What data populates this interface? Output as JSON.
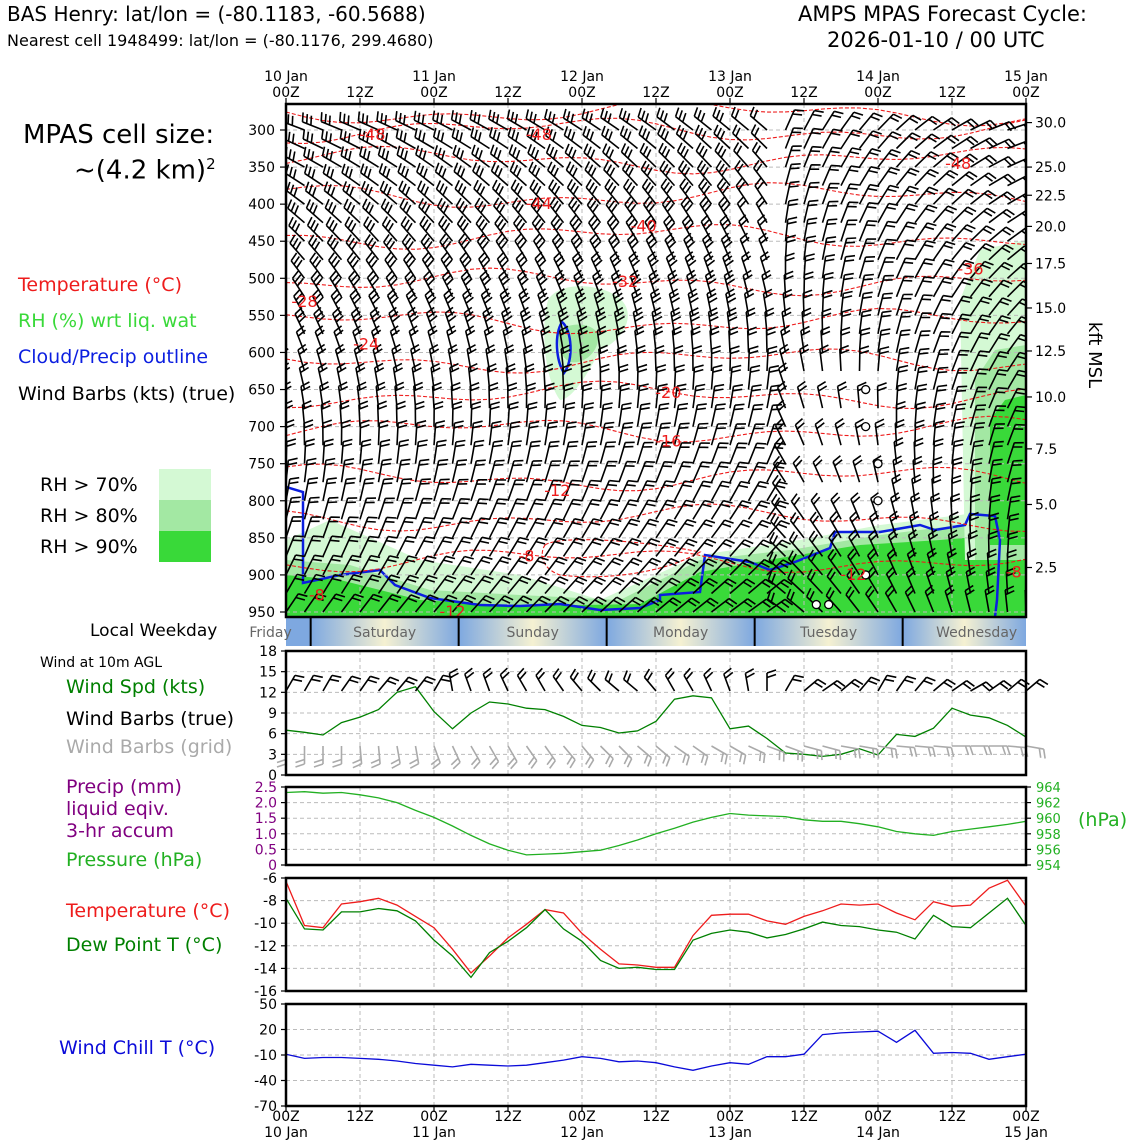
{
  "header": {
    "station_line": "BAS Henry: lat/lon = (-80.1183, -60.5688)",
    "cell_line": "Nearest cell 1948499: lat/lon = (-80.1176, 299.4680)",
    "title_line1": "AMPS MPAS Forecast Cycle:",
    "title_line2": "2026-01-10 / 00 UTC"
  },
  "left_legend": {
    "cell_size_title": "MPAS cell size:",
    "cell_size_value": "~(4.2 km)",
    "cell_size_exp": "2",
    "temperature": "Temperature (°C)",
    "rh": "RH (%) wrt liq. wat",
    "cloud": "Cloud/Precip outline",
    "wind": "Wind Barbs (kts) (true)",
    "rh70": "RH > 70%",
    "rh80": "RH > 80%",
    "rh90": "RH > 90%"
  },
  "colors": {
    "temp": "#ee1c1c",
    "rh70": "#d4f9d4",
    "rh80": "#a3e8a3",
    "rh90": "#39d939",
    "cloud": "#0b1ee0",
    "pressure": "#22b022",
    "precip": "#800080",
    "dew": "#008000",
    "chill": "#0b0bd9",
    "gridbarb": "#aaaaaa"
  },
  "time_axis": {
    "top_labels": [
      {
        "day": "10 Jan",
        "hour": "00Z"
      },
      {
        "day": "",
        "hour": "12Z"
      },
      {
        "day": "11 Jan",
        "hour": "00Z"
      },
      {
        "day": "",
        "hour": "12Z"
      },
      {
        "day": "12 Jan",
        "hour": "00Z"
      },
      {
        "day": "",
        "hour": "12Z"
      },
      {
        "day": "13 Jan",
        "hour": "00Z"
      },
      {
        "day": "",
        "hour": "12Z"
      },
      {
        "day": "14 Jan",
        "hour": "00Z"
      },
      {
        "day": "",
        "hour": "12Z"
      },
      {
        "day": "15 Jan",
        "hour": "00Z"
      }
    ],
    "bottom_labels": [
      {
        "hour": "00Z",
        "day": "10 Jan"
      },
      {
        "hour": "12Z",
        "day": ""
      },
      {
        "hour": "00Z",
        "day": "11 Jan"
      },
      {
        "hour": "12Z",
        "day": ""
      },
      {
        "hour": "00Z",
        "day": "12 Jan"
      },
      {
        "hour": "12Z",
        "day": ""
      },
      {
        "hour": "00Z",
        "day": "13 Jan"
      },
      {
        "hour": "12Z",
        "day": ""
      },
      {
        "hour": "00Z",
        "day": "14 Jan"
      },
      {
        "hour": "12Z",
        "day": ""
      },
      {
        "hour": "00Z",
        "day": "15 Jan"
      }
    ]
  },
  "weekday": {
    "label": "Local Weekday",
    "days": [
      "Friday",
      "Saturday",
      "Sunday",
      "Monday",
      "Tuesday",
      "Wednesday"
    ]
  },
  "surface_legend": {
    "wind_title": "Wind at 10m AGL",
    "wind_spd": "Wind Spd (kts)",
    "barbs_true": "Wind Barbs (true)",
    "barbs_grid": "Wind Barbs (grid)",
    "precip1": "Precip (mm)",
    "precip2": "liquid eqiv.",
    "precip3": "3-hr accum",
    "pressure": "Pressure (hPa)",
    "pressure_unit": "(hPa)",
    "temperature": "Temperature (°C)",
    "dewpoint": "Dew Point T (°C)",
    "windchill": "Wind Chill T (°C)"
  },
  "chart_data": [
    {
      "type": "contour",
      "name": "cross-section",
      "yaxis_label": "hPa",
      "yticks": [
        "300",
        "350",
        "400",
        "450",
        "500",
        "550",
        "600",
        "650",
        "700",
        "750",
        "800",
        "850",
        "900",
        "950"
      ],
      "ylim": [
        300,
        950
      ],
      "right_label": "kft MSL",
      "right_ticks": [
        "30.0",
        "25.0",
        "22.5",
        "20.0",
        "17.5",
        "15.0",
        "12.5",
        "10.0",
        "7.5",
        "5.0",
        "2.5"
      ],
      "right_tick_hpa": [
        290,
        350,
        388,
        430,
        480,
        540,
        598,
        660,
        730,
        805,
        890
      ],
      "xlim_hours": [
        0,
        120
      ],
      "temp_contour_labels": [
        {
          "text": "-48",
          "t": 14,
          "p": 307
        },
        {
          "text": "-48",
          "t": 41,
          "p": 307
        },
        {
          "text": "-48",
          "t": 109,
          "p": 346
        },
        {
          "text": "-44",
          "t": 41,
          "p": 400
        },
        {
          "text": "-40",
          "t": 58,
          "p": 430
        },
        {
          "text": "-36",
          "t": 111,
          "p": 488
        },
        {
          "text": "-32",
          "t": 55,
          "p": 505
        },
        {
          "text": "-28",
          "t": 3,
          "p": 532
        },
        {
          "text": "-24",
          "t": 13,
          "p": 589
        },
        {
          "text": "-20",
          "t": 62,
          "p": 655
        },
        {
          "text": "-16",
          "t": 62,
          "p": 720
        },
        {
          "text": "-12",
          "t": 44,
          "p": 787
        },
        {
          "text": "-8",
          "t": 39,
          "p": 875
        },
        {
          "text": "-12",
          "t": 92,
          "p": 900
        },
        {
          "text": "-8",
          "t": 5,
          "p": 928
        },
        {
          "text": "-12",
          "t": 27,
          "p": 950
        },
        {
          "text": "-8",
          "t": 118,
          "p": 897
        }
      ]
    },
    {
      "type": "line",
      "name": "wind-speed",
      "ylim": [
        0,
        18
      ],
      "yticks": [
        "0",
        "3",
        "6",
        "9",
        "12",
        "15",
        "18"
      ],
      "x_hours": [
        0,
        3,
        6,
        9,
        12,
        15,
        18,
        21,
        24,
        27,
        30,
        33,
        36,
        39,
        42,
        45,
        48,
        51,
        54,
        57,
        60,
        63,
        66,
        69,
        72,
        75,
        78,
        81,
        84,
        87,
        90,
        93,
        96,
        99,
        102,
        105,
        108,
        111,
        114,
        117,
        120
      ],
      "values": [
        6.5,
        6.2,
        5.8,
        7.6,
        8.4,
        9.5,
        12.0,
        12.8,
        9.2,
        6.7,
        9.0,
        10.6,
        10.3,
        9.7,
        9.5,
        8.5,
        7.2,
        6.9,
        6.1,
        6.4,
        7.8,
        11.0,
        11.5,
        11.2,
        6.7,
        7.1,
        5.3,
        3.2,
        3.0,
        2.7,
        3.0,
        3.8,
        2.9,
        5.9,
        5.6,
        6.8,
        9.7,
        8.7,
        8.3,
        7.2,
        5.5
      ],
      "barb_angles_true": [
        120,
        120,
        120,
        115,
        115,
        110,
        110,
        112,
        120,
        160,
        170,
        170,
        175,
        180,
        180,
        185,
        190,
        195,
        200,
        200,
        190,
        180,
        180,
        175,
        170,
        160,
        150,
        120,
        100,
        95,
        100,
        110,
        120,
        115,
        110,
        100,
        95,
        90,
        95,
        100,
        100
      ],
      "barb_angles_grid": [
        200,
        200,
        200,
        200,
        195,
        195,
        190,
        190,
        180,
        175,
        170,
        170,
        170,
        165,
        165,
        160,
        160,
        155,
        155,
        150,
        150,
        145,
        145,
        140,
        140,
        135,
        130,
        130,
        125,
        125,
        120,
        120,
        120,
        115,
        115,
        115,
        110,
        110,
        110,
        115,
        120
      ]
    },
    {
      "type": "line",
      "name": "precip-pressure",
      "precip_ylim": [
        0,
        2.5
      ],
      "precip_yticks": [
        "0",
        "0.5",
        "1.0",
        "1.5",
        "2.0",
        "2.5"
      ],
      "pressure_ylim": [
        954,
        964
      ],
      "pressure_yticks": [
        "954",
        "956",
        "958",
        "960",
        "962",
        "964"
      ],
      "x_hours": [
        0,
        3,
        6,
        9,
        12,
        15,
        18,
        21,
        24,
        27,
        30,
        33,
        36,
        39,
        42,
        45,
        48,
        51,
        54,
        57,
        60,
        63,
        66,
        69,
        72,
        75,
        78,
        81,
        84,
        87,
        90,
        93,
        96,
        99,
        102,
        105,
        108,
        111,
        114,
        117,
        120
      ],
      "pressure": [
        963.3,
        963.4,
        963.2,
        963.3,
        963.0,
        962.6,
        962.0,
        961.0,
        960.1,
        959.0,
        957.8,
        956.7,
        955.9,
        955.3,
        955.4,
        955.5,
        955.7,
        955.9,
        956.5,
        957.2,
        958.0,
        958.7,
        959.5,
        960.1,
        960.6,
        960.4,
        960.3,
        960.2,
        959.8,
        959.6,
        959.6,
        959.3,
        958.9,
        958.3,
        958.0,
        957.8,
        958.3,
        958.6,
        958.9,
        959.2,
        959.6
      ]
    },
    {
      "type": "line",
      "name": "temperature-dewpoint",
      "ylim": [
        -16,
        -6
      ],
      "yticks": [
        "-16",
        "-14",
        "-12",
        "-10",
        "-8",
        "-6"
      ],
      "x_hours": [
        0,
        3,
        6,
        9,
        12,
        15,
        18,
        21,
        24,
        27,
        30,
        33,
        36,
        39,
        42,
        45,
        48,
        51,
        54,
        57,
        60,
        63,
        66,
        69,
        72,
        75,
        78,
        81,
        84,
        87,
        90,
        93,
        96,
        99,
        102,
        105,
        108,
        111,
        114,
        117,
        120
      ],
      "temperature": [
        -6.3,
        -10.2,
        -10.4,
        -8.3,
        -8.1,
        -7.8,
        -8.4,
        -9.4,
        -10.4,
        -12.3,
        -14.4,
        -12.9,
        -11.3,
        -10.1,
        -8.8,
        -9.1,
        -10.9,
        -12.3,
        -13.6,
        -13.7,
        -13.9,
        -13.9,
        -11.1,
        -9.3,
        -9.2,
        -9.2,
        -9.8,
        -10.1,
        -9.4,
        -8.9,
        -8.3,
        -8.4,
        -8.3,
        -9.1,
        -9.7,
        -8.1,
        -8.5,
        -8.4,
        -6.9,
        -6.2,
        -8.5
      ],
      "dewpoint": [
        -7.8,
        -10.5,
        -10.6,
        -9.0,
        -9.0,
        -8.7,
        -8.9,
        -9.8,
        -11.5,
        -12.9,
        -14.8,
        -12.6,
        -11.6,
        -10.4,
        -8.8,
        -10.5,
        -11.6,
        -13.3,
        -14.0,
        -13.9,
        -14.1,
        -14.1,
        -11.5,
        -10.9,
        -10.6,
        -10.8,
        -11.3,
        -11.0,
        -10.5,
        -9.9,
        -10.2,
        -10.3,
        -10.6,
        -10.8,
        -11.4,
        -9.3,
        -10.3,
        -10.4,
        -9.1,
        -7.8,
        -10.2
      ]
    },
    {
      "type": "line",
      "name": "wind-chill",
      "ylim": [
        -70,
        50
      ],
      "yticks": [
        "-70",
        "-40",
        "-10",
        "20",
        "50"
      ],
      "x_hours": [
        0,
        3,
        6,
        9,
        12,
        15,
        18,
        21,
        24,
        27,
        30,
        33,
        36,
        39,
        42,
        45,
        48,
        51,
        54,
        57,
        60,
        63,
        66,
        69,
        72,
        75,
        78,
        81,
        84,
        87,
        90,
        93,
        96,
        99,
        102,
        105,
        108,
        111,
        114,
        117,
        120
      ],
      "values": [
        -9,
        -14,
        -13,
        -13,
        -14,
        -15,
        -17,
        -20,
        -22,
        -24,
        -21,
        -22,
        -23,
        -22,
        -19,
        -16,
        -12,
        -14,
        -18,
        -17,
        -19,
        -24,
        -28,
        -23,
        -19,
        -21,
        -12,
        -12,
        -9,
        14,
        16,
        17,
        18,
        5,
        19,
        -8,
        -7,
        -8,
        -15,
        -12,
        -9
      ]
    }
  ]
}
